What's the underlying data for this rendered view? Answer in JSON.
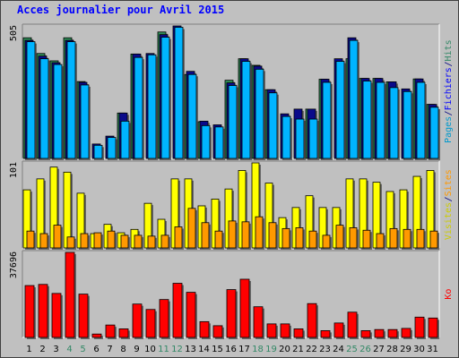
{
  "chart_data": {
    "type": "bar",
    "title": "Acces journalier pour Avril 2015",
    "categories": [
      "1",
      "2",
      "3",
      "4",
      "5",
      "6",
      "7",
      "8",
      "9",
      "10",
      "11",
      "12",
      "13",
      "14",
      "15",
      "16",
      "17",
      "18",
      "19",
      "20",
      "21",
      "22",
      "23",
      "24",
      "25",
      "26",
      "27",
      "28",
      "29",
      "30",
      "31"
    ],
    "weekend_days": [
      "4",
      "5",
      "11",
      "12",
      "18",
      "19",
      "25",
      "26"
    ],
    "panels": [
      {
        "name": "pages-fichiers-hits",
        "ymax_label": "505",
        "ymax": 505,
        "side_labels": [
          {
            "text": "Pages",
            "color": "#0099cc"
          },
          {
            "text": "/",
            "color": "#000080"
          },
          {
            "text": "Fichiers",
            "color": "#0000ff"
          },
          {
            "text": "/",
            "color": "#000080"
          },
          {
            "text": "Hits",
            "color": "#338866"
          }
        ],
        "series": [
          {
            "name": "Hits",
            "color": "#2e8b57",
            "values": [
              460,
              400,
              372,
              460,
              293,
              0,
              0,
              173,
              398,
              0,
              482,
              0,
              320,
              140,
              0,
              298,
              380,
              355,
              262,
              0,
              0,
              188,
              302,
              0,
              380,
              305,
              305,
              292,
              0,
              303,
              206
            ]
          },
          {
            "name": "Fichiers",
            "color": "#0a0a8a",
            "values": [
              450,
              390,
              365,
              450,
              290,
              55,
              85,
              173,
              398,
              400,
              472,
              505,
              332,
              142,
              128,
              288,
              380,
              352,
              262,
              170,
              188,
              188,
              302,
              380,
              460,
              305,
              305,
              292,
              265,
              303,
              206
            ]
          },
          {
            "name": "Pages",
            "color": "#00b4ff",
            "values": [
              445,
              380,
              358,
              445,
              280,
              50,
              80,
              142,
              385,
              395,
              462,
              500,
              320,
              125,
              120,
              278,
              370,
              340,
              250,
              160,
              150,
              150,
              290,
              370,
              450,
              295,
              290,
              270,
              255,
              290,
              195
            ]
          }
        ]
      },
      {
        "name": "visites-sites",
        "ymax_label": "101",
        "ymax": 101,
        "side_labels": [
          {
            "text": "Visites",
            "color": "#cccc00"
          },
          {
            "text": "/",
            "color": "#000080"
          },
          {
            "text": "Sites",
            "color": "#ff9900"
          }
        ],
        "series": [
          {
            "name": "Visites",
            "color": "#ffff00",
            "values": [
              69,
              82,
              96,
              90,
              65,
              17,
              28,
              18,
              22,
              53,
              34,
              82,
              82,
              50,
              58,
              70,
              92,
              101,
              77,
              36,
              48,
              62,
              48,
              48,
              82,
              82,
              78,
              67,
              69,
              85,
              92
            ]
          },
          {
            "name": "Sites",
            "color": "#ff9900",
            "values": [
              20,
              17,
              27,
              13,
              17,
              18,
              20,
              15,
              15,
              14,
              15,
              25,
              47,
              30,
              20,
              32,
              31,
              37,
              30,
              23,
              24,
              20,
              15,
              27,
              24,
              21,
              17,
              23,
              22,
              22,
              20
            ]
          }
        ]
      },
      {
        "name": "ko",
        "ymax_label": "37696",
        "ymax": 37696,
        "side_labels": [
          {
            "text": "Ko",
            "color": "#ff0000"
          }
        ],
        "series": [
          {
            "name": "Ko",
            "color": "#ff0000",
            "values": [
              23000,
              23500,
              19500,
              37696,
              19200,
              1500,
              5500,
              3800,
              14800,
              12400,
              16800,
              24000,
              20000,
              7000,
              5200,
              21200,
              25800,
              13600,
              6000,
              6000,
              3800,
              15000,
              3000,
              6400,
              11200,
              3000,
              3500,
              3500,
              4000,
              9000,
              8600
            ]
          }
        ]
      }
    ]
  }
}
